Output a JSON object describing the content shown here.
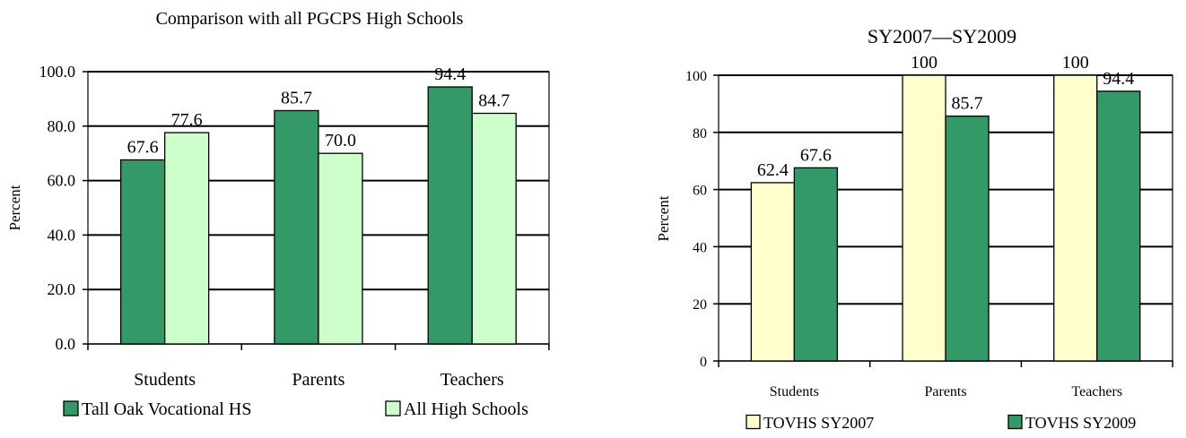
{
  "chart_data": [
    {
      "type": "bar",
      "title": "Comparison with all PGCPS High Schools",
      "ylabel": "Percent",
      "xlabel": "",
      "ylim": [
        0,
        100
      ],
      "yticks": [
        "0.0",
        "20.0",
        "40.0",
        "60.0",
        "80.0",
        "100.0"
      ],
      "categories": [
        "Students",
        "Parents",
        "Teachers"
      ],
      "series": [
        {
          "name": "Tall Oak Vocational HS",
          "values": [
            67.6,
            85.7,
            94.4
          ],
          "labels": [
            "67.6",
            "85.7",
            "94.4"
          ],
          "color": "#339966"
        },
        {
          "name": "All High Schools",
          "values": [
            77.6,
            70.0,
            84.7
          ],
          "labels": [
            "77.6",
            "70.0",
            "84.7"
          ],
          "color": "#ccffcc"
        }
      ],
      "grid": true,
      "legend": "bottom"
    },
    {
      "type": "bar",
      "title": "SY2007—SY2009",
      "ylabel": "Percent",
      "xlabel": "",
      "ylim": [
        0,
        100
      ],
      "yticks": [
        "0",
        "20",
        "40",
        "60",
        "80",
        "100"
      ],
      "categories": [
        "Students",
        "Parents",
        "Teachers"
      ],
      "series": [
        {
          "name": "TOVHS SY2007",
          "values": [
            62.4,
            100,
            100
          ],
          "labels": [
            "62.4",
            "100",
            "100"
          ],
          "color": "#ffffcc"
        },
        {
          "name": "TOVHS SY2009",
          "values": [
            67.6,
            85.7,
            94.4
          ],
          "labels": [
            "67.6",
            "85.7",
            "94.4"
          ],
          "color": "#339966"
        }
      ],
      "grid": true,
      "legend": "bottom"
    }
  ]
}
